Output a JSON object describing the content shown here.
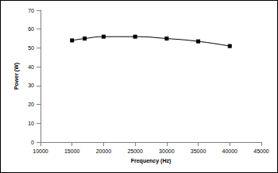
{
  "chart_data": {
    "type": "line",
    "x": [
      15000,
      17000,
      20000,
      25000,
      30000,
      35000,
      40000
    ],
    "values": [
      54,
      55,
      56,
      56,
      55,
      53.5,
      51
    ],
    "xlabel": "Frequency (Hz)",
    "ylabel": "Power (W)",
    "xlim": [
      10000,
      45000
    ],
    "xticks": [
      10000,
      15000,
      20000,
      25000,
      30000,
      35000,
      40000,
      45000
    ],
    "ylim": [
      0,
      70
    ],
    "yticks": [
      0,
      10,
      20,
      30,
      40,
      50,
      60,
      70
    ],
    "grid": false,
    "color": "#000000",
    "marker": "square",
    "line_style": "solid"
  }
}
